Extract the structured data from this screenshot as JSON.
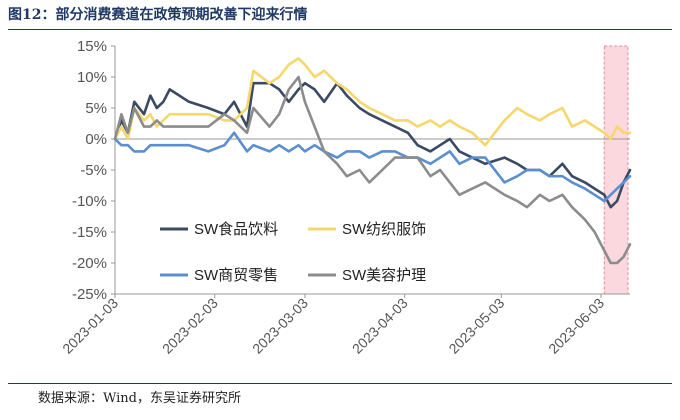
{
  "header": {
    "title": "图12：部分消费赛道在政策预期改善下迎来行情"
  },
  "footer": {
    "source": "数据来源：Wind，东吴证券研究所"
  },
  "colors": {
    "title": "#1f3864",
    "highlight": "#f9c8cf"
  },
  "chart_data": {
    "type": "line",
    "title": "部分消费赛道在政策预期改善下迎来行情",
    "ylim": [
      -25,
      15
    ],
    "yticks": [
      -25,
      -20,
      -15,
      -10,
      -5,
      0,
      5,
      10,
      15
    ],
    "ytick_labels": [
      "-25%",
      "-20%",
      "-15%",
      "-10%",
      "-5%",
      "0%",
      "5%",
      "10%",
      "15%"
    ],
    "x_ticks": [
      "2023-01-03",
      "2023-02-03",
      "2023-03-03",
      "2023-04-03",
      "2023-05-03",
      "2023-06-03"
    ],
    "x_range": [
      "2023-01-03",
      "2023-06-12"
    ],
    "highlight_range": [
      "2023-06-04",
      "2023-06-12"
    ],
    "grid": false,
    "legend_position": "inside lower-left",
    "series": [
      {
        "name": "SW食品饮料",
        "color": "#3a4a63",
        "x": [
          "2023-01-03",
          "2023-01-05",
          "2023-01-07",
          "2023-01-09",
          "2023-01-12",
          "2023-01-14",
          "2023-01-16",
          "2023-01-18",
          "2023-01-20",
          "2023-01-26",
          "2023-02-01",
          "2023-02-06",
          "2023-02-09",
          "2023-02-13",
          "2023-02-15",
          "2023-02-20",
          "2023-02-23",
          "2023-02-26",
          "2023-03-01",
          "2023-03-03",
          "2023-03-06",
          "2023-03-09",
          "2023-03-13",
          "2023-03-16",
          "2023-03-20",
          "2023-03-23",
          "2023-03-27",
          "2023-03-31",
          "2023-04-04",
          "2023-04-07",
          "2023-04-11",
          "2023-04-14",
          "2023-04-17",
          "2023-04-20",
          "2023-04-24",
          "2023-04-28",
          "2023-05-04",
          "2023-05-08",
          "2023-05-11",
          "2023-05-15",
          "2023-05-18",
          "2023-05-22",
          "2023-05-25",
          "2023-05-29",
          "2023-06-01",
          "2023-06-04",
          "2023-06-06",
          "2023-06-08",
          "2023-06-10",
          "2023-06-12"
        ],
        "values": [
          0,
          3,
          1,
          6,
          4,
          7,
          5,
          6,
          8,
          6,
          5,
          4,
          6,
          2,
          9,
          9,
          8,
          6,
          8,
          9,
          8,
          6,
          9,
          7,
          5,
          4,
          3,
          2,
          1,
          -1,
          -2,
          -1,
          0,
          -2,
          -3,
          -4,
          -3,
          -4,
          -5,
          -5,
          -6,
          -4,
          -6,
          -7,
          -8,
          -9,
          -11,
          -10,
          -7,
          -5
        ]
      },
      {
        "name": "SW纺织服饰",
        "color": "#f6d76c",
        "x": [
          "2023-01-03",
          "2023-01-05",
          "2023-01-07",
          "2023-01-09",
          "2023-01-12",
          "2023-01-14",
          "2023-01-16",
          "2023-01-18",
          "2023-01-20",
          "2023-01-26",
          "2023-02-01",
          "2023-02-06",
          "2023-02-09",
          "2023-02-13",
          "2023-02-15",
          "2023-02-20",
          "2023-02-23",
          "2023-02-26",
          "2023-03-01",
          "2023-03-03",
          "2023-03-06",
          "2023-03-09",
          "2023-03-13",
          "2023-03-16",
          "2023-03-20",
          "2023-03-23",
          "2023-03-27",
          "2023-03-31",
          "2023-04-04",
          "2023-04-07",
          "2023-04-11",
          "2023-04-14",
          "2023-04-17",
          "2023-04-20",
          "2023-04-24",
          "2023-04-28",
          "2023-05-04",
          "2023-05-08",
          "2023-05-11",
          "2023-05-15",
          "2023-05-18",
          "2023-05-22",
          "2023-05-25",
          "2023-05-29",
          "2023-06-01",
          "2023-06-04",
          "2023-06-06",
          "2023-06-08",
          "2023-06-10",
          "2023-06-12"
        ],
        "values": [
          0,
          2,
          0,
          5,
          3,
          4,
          2,
          3,
          4,
          4,
          4,
          3,
          3,
          5,
          11,
          9,
          10,
          12,
          13,
          12,
          10,
          11,
          9,
          8,
          6,
          5,
          4,
          3,
          3,
          2,
          3,
          2,
          3,
          2,
          1,
          -1,
          3,
          5,
          4,
          3,
          4,
          5,
          2,
          3,
          2,
          1,
          0,
          2,
          1,
          1
        ]
      },
      {
        "name": "SW商贸零售",
        "color": "#5b8fd0",
        "x": [
          "2023-01-03",
          "2023-01-05",
          "2023-01-07",
          "2023-01-09",
          "2023-01-12",
          "2023-01-14",
          "2023-01-16",
          "2023-01-18",
          "2023-01-20",
          "2023-01-26",
          "2023-02-01",
          "2023-02-06",
          "2023-02-09",
          "2023-02-13",
          "2023-02-15",
          "2023-02-20",
          "2023-02-23",
          "2023-02-26",
          "2023-03-01",
          "2023-03-03",
          "2023-03-06",
          "2023-03-09",
          "2023-03-13",
          "2023-03-16",
          "2023-03-20",
          "2023-03-23",
          "2023-03-27",
          "2023-03-31",
          "2023-04-04",
          "2023-04-07",
          "2023-04-11",
          "2023-04-14",
          "2023-04-17",
          "2023-04-20",
          "2023-04-24",
          "2023-04-28",
          "2023-05-04",
          "2023-05-08",
          "2023-05-11",
          "2023-05-15",
          "2023-05-18",
          "2023-05-22",
          "2023-05-25",
          "2023-05-29",
          "2023-06-01",
          "2023-06-04",
          "2023-06-06",
          "2023-06-08",
          "2023-06-10",
          "2023-06-12"
        ],
        "values": [
          0,
          -1,
          -1,
          -2,
          -2,
          -1,
          -1,
          -1,
          -1,
          -1,
          -2,
          -1,
          1,
          -2,
          -1,
          -2,
          -1,
          -2,
          -1,
          -2,
          -1,
          -2,
          -3,
          -2,
          -2,
          -3,
          -2,
          -2,
          -3,
          -3,
          -4,
          -3,
          -2,
          -4,
          -3,
          -3,
          -7,
          -6,
          -5,
          -5,
          -6,
          -6,
          -7,
          -8,
          -9,
          -10,
          -9,
          -8,
          -7,
          -6
        ]
      },
      {
        "name": "SW美容护理",
        "color": "#8c8c8c",
        "x": [
          "2023-01-03",
          "2023-01-05",
          "2023-01-07",
          "2023-01-09",
          "2023-01-12",
          "2023-01-14",
          "2023-01-16",
          "2023-01-18",
          "2023-01-20",
          "2023-01-26",
          "2023-02-01",
          "2023-02-06",
          "2023-02-09",
          "2023-02-13",
          "2023-02-15",
          "2023-02-20",
          "2023-02-23",
          "2023-02-26",
          "2023-03-01",
          "2023-03-03",
          "2023-03-06",
          "2023-03-09",
          "2023-03-13",
          "2023-03-16",
          "2023-03-20",
          "2023-03-23",
          "2023-03-27",
          "2023-03-31",
          "2023-04-04",
          "2023-04-07",
          "2023-04-11",
          "2023-04-14",
          "2023-04-17",
          "2023-04-20",
          "2023-04-24",
          "2023-04-28",
          "2023-05-04",
          "2023-05-08",
          "2023-05-11",
          "2023-05-15",
          "2023-05-18",
          "2023-05-22",
          "2023-05-25",
          "2023-05-29",
          "2023-06-01",
          "2023-06-04",
          "2023-06-06",
          "2023-06-08",
          "2023-06-10",
          "2023-06-12"
        ],
        "values": [
          0,
          4,
          1,
          5,
          2,
          2,
          3,
          2,
          2,
          2,
          2,
          4,
          3,
          1,
          5,
          2,
          4,
          8,
          10,
          6,
          2,
          -2,
          -4,
          -6,
          -5,
          -7,
          -5,
          -3,
          -3,
          -3,
          -6,
          -5,
          -7,
          -9,
          -8,
          -7,
          -9,
          -10,
          -11,
          -9,
          -10,
          -9,
          -11,
          -13,
          -15,
          -18,
          -20,
          -20,
          -19,
          -17
        ]
      }
    ]
  }
}
